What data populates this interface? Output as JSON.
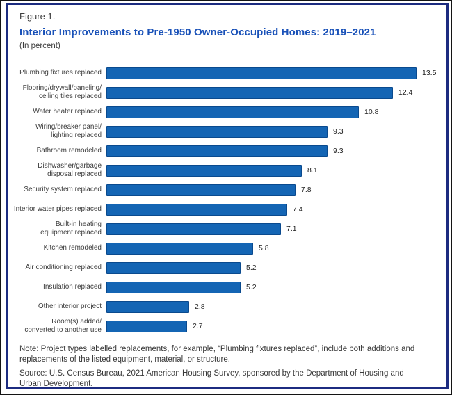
{
  "header": {
    "figure_label": "Figure 1.",
    "title": "Interior Improvements to Pre-1950 Owner-Occupied Homes: 2019–2021",
    "subtitle": "(In percent)"
  },
  "footer": {
    "note": "Note: Project types labelled replacements, for example, “Plumbing fixtures replaced”, include both additions and\nreplacements of the listed equipment, material, or structure.",
    "source": "Source: U.S. Census Bureau, 2021 American Housing Survey, sponsored by the Department of Housing and\nUrban Development."
  },
  "colors": {
    "bar_fill": "#1465b4",
    "bar_border": "#0a4a8e",
    "title_blue": "#1951b8",
    "frame_border": "#1c2b80",
    "text": "#3d3d3d"
  },
  "chart_data": {
    "type": "bar",
    "orientation": "horizontal",
    "title": "Interior Improvements to Pre-1950 Owner-Occupied Homes: 2019–2021",
    "units": "percent",
    "grid": false,
    "legend": "none",
    "axis": {
      "baseline_visible": true,
      "ticks_visible": false,
      "value_labels_at_bar_ends": true
    },
    "categories": [
      "Plumbing fixtures replaced",
      "Flooring/drywall/paneling/\nceiling tiles replaced",
      "Water heater replaced",
      "Wiring/breaker panel/\nlighting replaced",
      "Bathroom remodeled",
      "Dishwasher/garbage\ndisposal replaced",
      "Security system replaced",
      "Interior water pipes replaced",
      "Built-in heating\nequipment replaced",
      "Kitchen remodeled",
      "Air conditioning replaced",
      "Insulation replaced",
      "Other interior project",
      "Room(s) added/\nconverted to another use"
    ],
    "values": [
      13.5,
      12.4,
      10.8,
      9.3,
      9.3,
      8.1,
      7.8,
      7.4,
      7.1,
      5.8,
      5.2,
      5.2,
      2.8,
      2.7
    ]
  }
}
